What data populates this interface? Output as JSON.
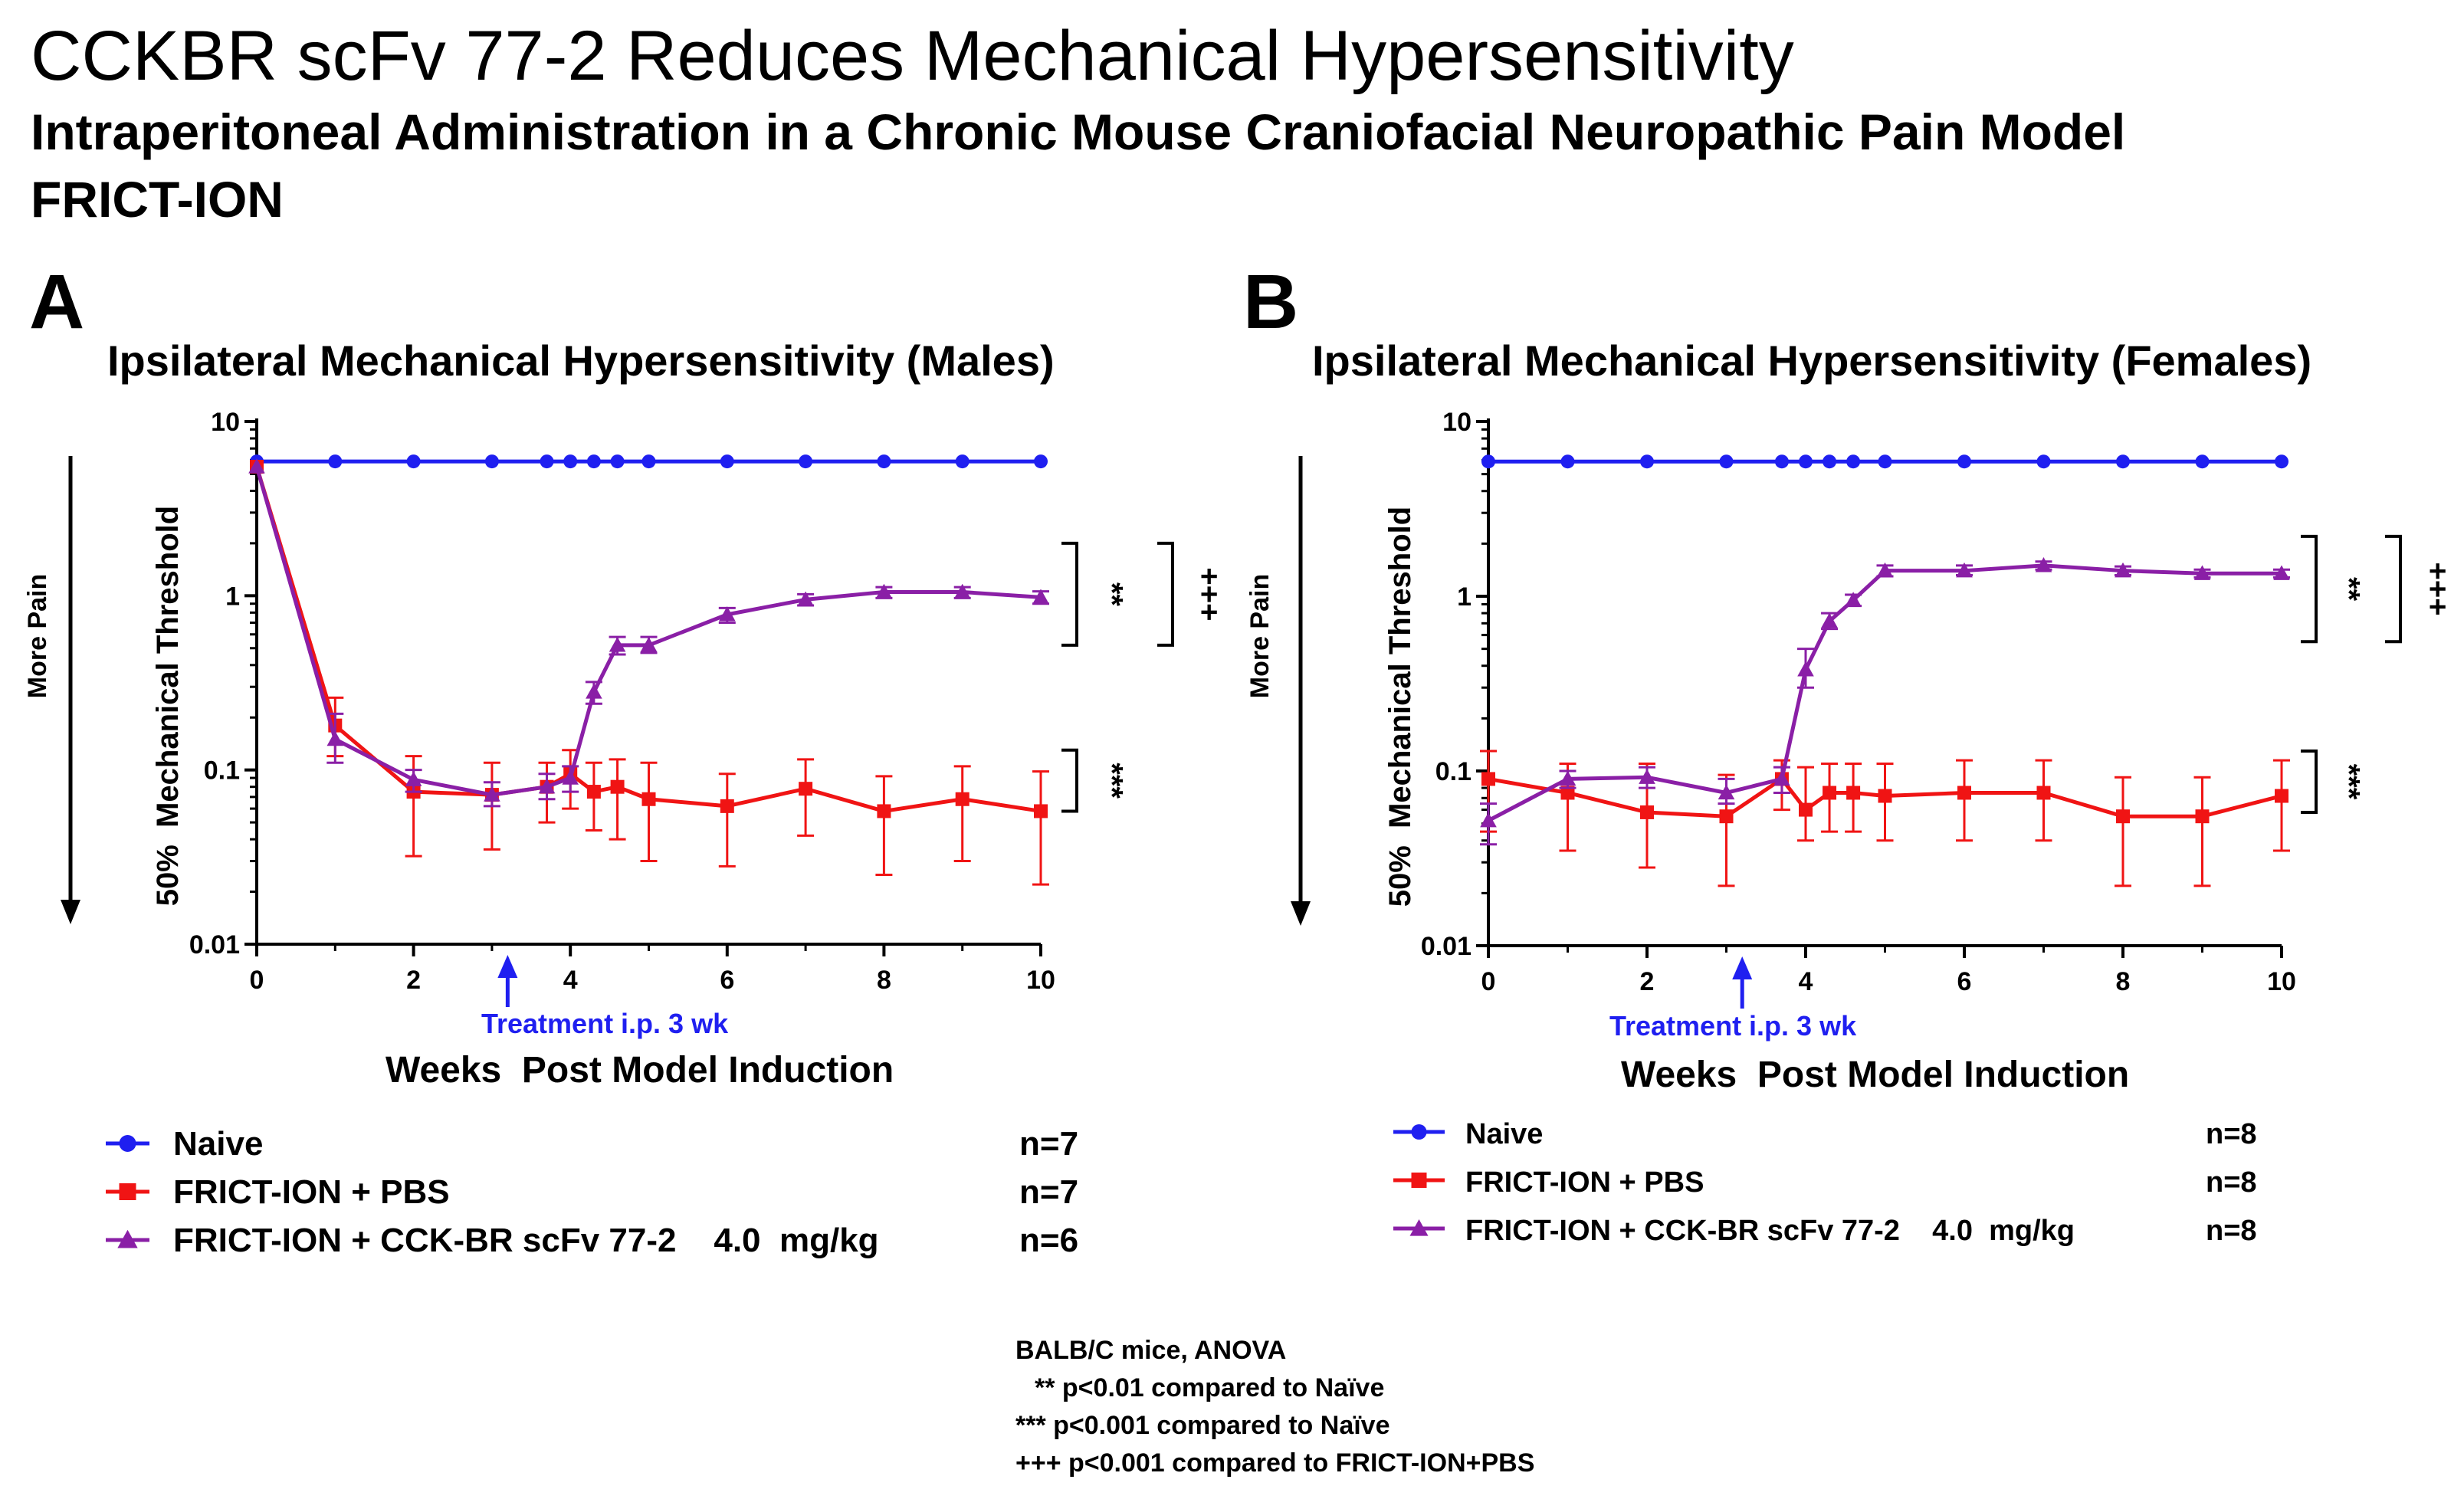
{
  "header": {
    "title": "CCKBR scFv 77-2 Reduces Mechanical Hypersensitivity",
    "subtitle1": "Intraperitoneal Administration in a Chronic Mouse Craniofacial Neuropathic Pain Model",
    "subtitle2": "FRICT-ION"
  },
  "colors": {
    "naive": "#1f1ff0",
    "pbs": "#f01414",
    "scfv": "#8a1fa6",
    "treatment": "#1f1ff0"
  },
  "chart_data": [
    {
      "type": "line",
      "panel_label": "A",
      "title": "Ipsilateral Mechanical Hypersensitivity (Males)",
      "xlabel": "Weeks  Post Model Induction",
      "ylabel": "50%  Mechanical Threshold",
      "y_side_label": "More Pain",
      "yscale": "log",
      "ylim": [
        0.01,
        10
      ],
      "xlim": [
        0,
        10
      ],
      "x_ticks": [
        0,
        2,
        4,
        6,
        8,
        10
      ],
      "y_ticks": [
        0.01,
        0.1,
        1,
        10
      ],
      "y_tick_labels": [
        "0.01",
        "0.1",
        "1",
        "10"
      ],
      "treatment_marker": {
        "x": 3.2,
        "label": "Treatment i.p. 3 wk"
      },
      "series": [
        {
          "name": "Naive",
          "n": "n=7",
          "marker": "circle",
          "color_key": "naive",
          "x": [
            0,
            1,
            2,
            3,
            3.7,
            4,
            4.3,
            4.6,
            5,
            6,
            7,
            8,
            9,
            10
          ],
          "y": [
            5.9,
            5.9,
            5.9,
            5.9,
            5.9,
            5.9,
            5.9,
            5.9,
            5.9,
            5.9,
            5.9,
            5.9,
            5.9,
            5.9
          ],
          "err_lo": [],
          "err_hi": []
        },
        {
          "name": "FRICT-ION + PBS",
          "n": "n=7",
          "marker": "square",
          "color_key": "pbs",
          "x": [
            0,
            1,
            2,
            3,
            3.7,
            4,
            4.3,
            4.6,
            5,
            6,
            7,
            8,
            9,
            10
          ],
          "y": [
            5.5,
            0.18,
            0.075,
            0.072,
            0.08,
            0.095,
            0.075,
            0.08,
            0.068,
            0.062,
            0.078,
            0.058,
            0.068,
            0.058
          ],
          "err_lo": [
            5.5,
            0.12,
            0.032,
            0.035,
            0.05,
            0.06,
            0.045,
            0.04,
            0.03,
            0.028,
            0.042,
            0.025,
            0.03,
            0.022
          ],
          "err_hi": [
            5.5,
            0.26,
            0.12,
            0.11,
            0.11,
            0.13,
            0.11,
            0.115,
            0.11,
            0.095,
            0.115,
            0.092,
            0.105,
            0.098
          ]
        },
        {
          "name": "FRICT-ION + CCK-BR scFv 77-2    4.0  mg/kg",
          "n": "n=6",
          "marker": "triangle",
          "color_key": "scfv",
          "x": [
            0,
            1,
            2,
            3,
            3.7,
            4,
            4.3,
            4.6,
            5,
            6,
            7,
            8,
            9,
            10
          ],
          "y": [
            5.5,
            0.15,
            0.088,
            0.072,
            0.08,
            0.09,
            0.28,
            0.52,
            0.52,
            0.78,
            0.95,
            1.05,
            1.05,
            0.98
          ],
          "err_lo": [
            5.5,
            0.11,
            0.075,
            0.062,
            0.068,
            0.075,
            0.24,
            0.46,
            0.47,
            0.7,
            0.88,
            0.97,
            0.97,
            0.9
          ],
          "err_hi": [
            5.5,
            0.21,
            0.1,
            0.085,
            0.095,
            0.105,
            0.32,
            0.58,
            0.58,
            0.85,
            1.02,
            1.12,
            1.12,
            1.06
          ]
        }
      ],
      "significance": [
        {
          "label": "**",
          "y_top": 2.0,
          "y_bottom": 0.52
        },
        {
          "label": "+++",
          "y_top": 2.0,
          "y_bottom": 0.52
        },
        {
          "label": "***",
          "y_top": 0.13,
          "y_bottom": 0.058
        }
      ]
    },
    {
      "type": "line",
      "panel_label": "B",
      "title": "Ipsilateral Mechanical Hypersensitivity (Females)",
      "xlabel": "Weeks  Post Model Induction",
      "ylabel": "50%  Mechanical Threshold",
      "y_side_label": "More Pain",
      "yscale": "log",
      "ylim": [
        0.01,
        10
      ],
      "xlim": [
        0,
        10
      ],
      "x_ticks": [
        0,
        2,
        4,
        6,
        8,
        10
      ],
      "y_ticks": [
        0.01,
        0.1,
        1,
        10
      ],
      "y_tick_labels": [
        "0.01",
        "0.1",
        "1",
        "10"
      ],
      "treatment_marker": {
        "x": 3.2,
        "label": "Treatment i.p. 3 wk"
      },
      "series": [
        {
          "name": "Naive",
          "n": "n=8",
          "marker": "circle",
          "color_key": "naive",
          "x": [
            0,
            1,
            2,
            3,
            3.7,
            4,
            4.3,
            4.6,
            5,
            6,
            7,
            8,
            9,
            10
          ],
          "y": [
            5.9,
            5.9,
            5.9,
            5.9,
            5.9,
            5.9,
            5.9,
            5.9,
            5.9,
            5.9,
            5.9,
            5.9,
            5.9,
            5.9
          ],
          "err_lo": [],
          "err_hi": []
        },
        {
          "name": "FRICT-ION + PBS",
          "n": "n=8",
          "marker": "square",
          "color_key": "pbs",
          "x": [
            0,
            1,
            2,
            3,
            3.7,
            4,
            4.3,
            4.6,
            5,
            6,
            7,
            8,
            9,
            10
          ],
          "y": [
            0.09,
            0.075,
            0.058,
            0.055,
            0.09,
            0.06,
            0.075,
            0.075,
            0.072,
            0.075,
            0.075,
            0.055,
            0.055,
            0.072
          ],
          "err_lo": [
            0.045,
            0.035,
            0.028,
            0.022,
            0.06,
            0.04,
            0.045,
            0.045,
            0.04,
            0.04,
            0.04,
            0.022,
            0.022,
            0.035
          ],
          "err_hi": [
            0.13,
            0.11,
            0.11,
            0.095,
            0.115,
            0.105,
            0.11,
            0.11,
            0.11,
            0.115,
            0.115,
            0.092,
            0.092,
            0.115
          ]
        },
        {
          "name": "FRICT-ION + CCK-BR scFv 77-2    4.0  mg/kg",
          "n": "n=8",
          "marker": "triangle",
          "color_key": "scfv",
          "x": [
            0,
            1,
            2,
            3,
            3.7,
            4,
            4.3,
            4.6,
            5,
            6,
            7,
            8,
            9,
            10
          ],
          "y": [
            0.052,
            0.09,
            0.092,
            0.075,
            0.09,
            0.38,
            0.72,
            0.95,
            1.4,
            1.4,
            1.5,
            1.4,
            1.35,
            1.35
          ],
          "err_lo": [
            0.038,
            0.08,
            0.08,
            0.065,
            0.075,
            0.3,
            0.65,
            0.88,
            1.3,
            1.32,
            1.42,
            1.32,
            1.28,
            1.28
          ],
          "err_hi": [
            0.065,
            0.1,
            0.105,
            0.09,
            0.105,
            0.5,
            0.8,
            1.02,
            1.5,
            1.5,
            1.58,
            1.48,
            1.42,
            1.42
          ]
        }
      ],
      "significance": [
        {
          "label": "**",
          "y_top": 2.2,
          "y_bottom": 0.55
        },
        {
          "label": "+++",
          "y_top": 2.2,
          "y_bottom": 0.55
        },
        {
          "label": "***",
          "y_top": 0.13,
          "y_bottom": 0.058
        }
      ]
    }
  ],
  "footnotes": {
    "line1": "BALB/C mice, ANOVA",
    "line2": "** p<0.01 compared to Naïve",
    "line3": "*** p<0.001 compared to Naïve",
    "line4": "+++ p<0.001 compared to FRICT-ION+PBS"
  }
}
